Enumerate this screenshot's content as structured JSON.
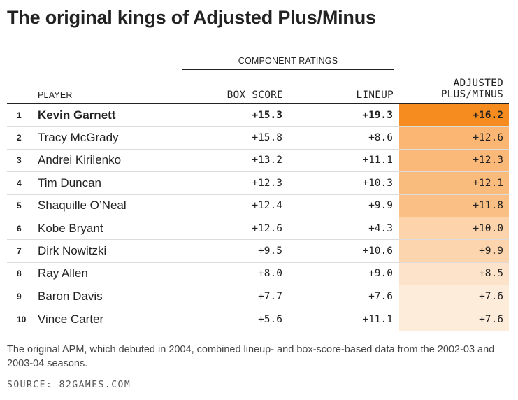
{
  "title": "The original kings of Adjusted Plus/Minus",
  "group_header": "COMPONENT RATINGS",
  "columns": {
    "player": "PLAYER",
    "box_score": "BOX SCORE",
    "lineup": "LINEUP",
    "apm_line1": "ADJUSTED",
    "apm_line2": "PLUS/MINUS"
  },
  "colors": {
    "scale_high": "#f68b1f",
    "scale_low": "#fff6ee",
    "text": "#222222"
  },
  "chart_data": {
    "type": "table",
    "title": "The original kings of Adjusted Plus/Minus",
    "columns": [
      "",
      "PLAYER",
      "BOX SCORE",
      "LINEUP",
      "ADJUSTED PLUS/MINUS"
    ],
    "rows": [
      {
        "rank": "1",
        "player": "Kevin Garnett",
        "box_score": "+15.3",
        "lineup": "+19.3",
        "apm": "+16.2"
      },
      {
        "rank": "2",
        "player": "Tracy McGrady",
        "box_score": "+15.8",
        "lineup": "+8.6",
        "apm": "+12.6"
      },
      {
        "rank": "3",
        "player": "Andrei Kirilenko",
        "box_score": "+13.2",
        "lineup": "+11.1",
        "apm": "+12.3"
      },
      {
        "rank": "4",
        "player": "Tim Duncan",
        "box_score": "+12.3",
        "lineup": "+10.3",
        "apm": "+12.1"
      },
      {
        "rank": "5",
        "player": "Shaquille O’Neal",
        "box_score": "+12.4",
        "lineup": "+9.9",
        "apm": "+11.8"
      },
      {
        "rank": "6",
        "player": "Kobe Bryant",
        "box_score": "+12.6",
        "lineup": "+4.3",
        "apm": "+10.0"
      },
      {
        "rank": "7",
        "player": "Dirk Nowitzki",
        "box_score": "+9.5",
        "lineup": "+10.6",
        "apm": "+9.9"
      },
      {
        "rank": "8",
        "player": "Ray Allen",
        "box_score": "+8.0",
        "lineup": "+9.0",
        "apm": "+8.5"
      },
      {
        "rank": "9",
        "player": "Baron Davis",
        "box_score": "+7.7",
        "lineup": "+7.6",
        "apm": "+7.6"
      },
      {
        "rank": "10",
        "player": "Vince Carter",
        "box_score": "+5.6",
        "lineup": "+11.1",
        "apm": "+7.6"
      }
    ]
  },
  "footnote": "The original APM, which debuted in 2004, combined lineup- and box-score-based data from the 2002-03 and 2003-04 seasons.",
  "source": "SOURCE: 82GAMES.COM"
}
